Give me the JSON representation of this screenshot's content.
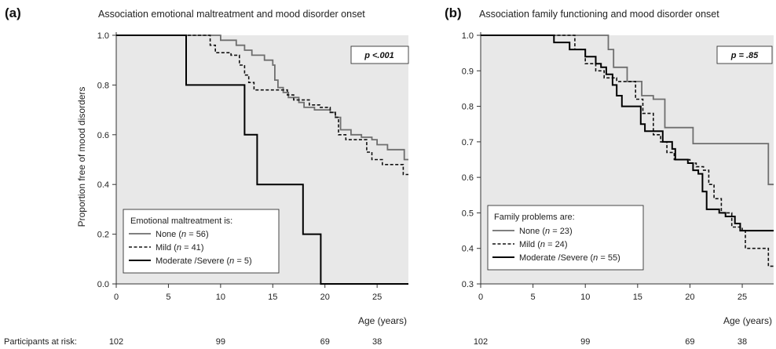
{
  "risk_row_label": "Participants at risk:",
  "legend_n_label": "n",
  "colors": {
    "plot_background": "#e8e8e8",
    "none": "#6e6e6e",
    "mild": "#111111",
    "moderate_severe": "#000000"
  },
  "chart_data": [
    {
      "type": "line",
      "step": true,
      "panel_letter": "(a)",
      "title": "Association emotional maltreatment and mood disorder onset",
      "xlabel": "Age (years)",
      "ylabel": "Proportion free of mood disorders",
      "xlim": [
        0,
        28
      ],
      "ylim": [
        0,
        1
      ],
      "xticks": [
        0,
        5,
        10,
        15,
        20,
        25
      ],
      "yticks": [
        "0.0",
        "0.2",
        "0.4",
        "0.6",
        "0.8",
        "1.0"
      ],
      "grid": false,
      "p_value": "p <.001",
      "legend": {
        "title": "Emotional maltreatment is:",
        "position": "bottom-left"
      },
      "series": [
        {
          "key": "none",
          "label": "None",
          "n_text": " = 56",
          "style": "solid",
          "color": "#6e6e6e",
          "width": 1.8,
          "points": [
            [
              0,
              1.0
            ],
            [
              9,
              1.0
            ],
            [
              10,
              0.98
            ],
            [
              11.5,
              0.96
            ],
            [
              12.3,
              0.94
            ],
            [
              13,
              0.92
            ],
            [
              14.2,
              0.9
            ],
            [
              15,
              0.88
            ],
            [
              15.2,
              0.82
            ],
            [
              15.5,
              0.79
            ],
            [
              16,
              0.77
            ],
            [
              16.5,
              0.75
            ],
            [
              17.5,
              0.73
            ],
            [
              18,
              0.71
            ],
            [
              19,
              0.7
            ],
            [
              20.5,
              0.69
            ],
            [
              21,
              0.67
            ],
            [
              21.5,
              0.62
            ],
            [
              22.5,
              0.6
            ],
            [
              23.5,
              0.59
            ],
            [
              24.5,
              0.58
            ],
            [
              25,
              0.56
            ],
            [
              26,
              0.54
            ],
            [
              27.6,
              0.5
            ],
            [
              28,
              0.5
            ]
          ]
        },
        {
          "key": "mild",
          "label": "Mild",
          "n_text": " = 41",
          "style": "dashed",
          "color": "#111111",
          "width": 1.6,
          "points": [
            [
              0,
              1.0
            ],
            [
              8.5,
              1.0
            ],
            [
              9,
              0.96
            ],
            [
              9.5,
              0.93
            ],
            [
              11,
              0.92
            ],
            [
              11.8,
              0.88
            ],
            [
              12.3,
              0.84
            ],
            [
              12.7,
              0.81
            ],
            [
              13.2,
              0.78
            ],
            [
              16,
              0.78
            ],
            [
              16.4,
              0.76
            ],
            [
              17,
              0.74
            ],
            [
              18.5,
              0.72
            ],
            [
              19.5,
              0.71
            ],
            [
              20.5,
              0.69
            ],
            [
              21,
              0.67
            ],
            [
              21.3,
              0.6
            ],
            [
              22,
              0.58
            ],
            [
              24,
              0.53
            ],
            [
              24.5,
              0.5
            ],
            [
              25.5,
              0.48
            ],
            [
              27.5,
              0.44
            ],
            [
              28,
              0.44
            ]
          ]
        },
        {
          "key": "moderate_severe",
          "label": "Moderate /Severe",
          "n_text": " = 5",
          "style": "solid",
          "color": "#000000",
          "width": 2.0,
          "points": [
            [
              0,
              1.0
            ],
            [
              6.7,
              1.0
            ],
            [
              6.7,
              0.8
            ],
            [
              12.3,
              0.8
            ],
            [
              12.3,
              0.6
            ],
            [
              13.5,
              0.6
            ],
            [
              13.5,
              0.4
            ],
            [
              17.9,
              0.4
            ],
            [
              17.9,
              0.2
            ],
            [
              19.6,
              0.2
            ],
            [
              19.6,
              0.0
            ],
            [
              28,
              0.0
            ]
          ]
        }
      ],
      "at_risk": [
        {
          "age": 0,
          "count": "102"
        },
        {
          "age": 10,
          "count": "99"
        },
        {
          "age": 20,
          "count": "69"
        },
        {
          "age": 25,
          "count": "38"
        }
      ]
    },
    {
      "type": "line",
      "step": true,
      "panel_letter": "(b)",
      "title": "Association family functioning and mood disorder onset",
      "xlabel": "Age (years)",
      "ylabel": "",
      "xlim": [
        0,
        28
      ],
      "ylim": [
        0.3,
        1
      ],
      "xticks": [
        0,
        5,
        10,
        15,
        20,
        25
      ],
      "yticks": [
        "0.3",
        "0.4",
        "0.5",
        "0.6",
        "0.7",
        "0.8",
        "0.9",
        "1.0"
      ],
      "grid": false,
      "p_value": "p = .85",
      "legend": {
        "title": "Family problems are:",
        "position": "bottom-left"
      },
      "series": [
        {
          "key": "none",
          "label": "None",
          "n_text": " = 23",
          "style": "solid",
          "color": "#6e6e6e",
          "width": 1.8,
          "points": [
            [
              0,
              1.0
            ],
            [
              12.2,
              1.0
            ],
            [
              12.2,
              0.96
            ],
            [
              12.7,
              0.91
            ],
            [
              14,
              0.91
            ],
            [
              14,
              0.87
            ],
            [
              15,
              0.87
            ],
            [
              15.4,
              0.83
            ],
            [
              16.5,
              0.83
            ],
            [
              16.5,
              0.82
            ],
            [
              17.3,
              0.82
            ],
            [
              17.6,
              0.74
            ],
            [
              20.3,
              0.74
            ],
            [
              20.3,
              0.695
            ],
            [
              27.5,
              0.695
            ],
            [
              27.5,
              0.58
            ],
            [
              28,
              0.58
            ]
          ]
        },
        {
          "key": "mild",
          "label": "Mild",
          "n_text": " = 24",
          "style": "dashed",
          "color": "#111111",
          "width": 1.6,
          "points": [
            [
              0,
              1.0
            ],
            [
              8.7,
              1.0
            ],
            [
              9,
              0.96
            ],
            [
              10,
              0.92
            ],
            [
              11,
              0.9
            ],
            [
              11.8,
              0.88
            ],
            [
              13,
              0.87
            ],
            [
              14.3,
              0.87
            ],
            [
              14.8,
              0.82
            ],
            [
              15.5,
              0.78
            ],
            [
              16.5,
              0.72
            ],
            [
              17.2,
              0.7
            ],
            [
              17.8,
              0.67
            ],
            [
              18.5,
              0.65
            ],
            [
              20,
              0.64
            ],
            [
              20.6,
              0.63
            ],
            [
              21.3,
              0.62
            ],
            [
              21.8,
              0.58
            ],
            [
              22.3,
              0.54
            ],
            [
              23,
              0.5
            ],
            [
              24,
              0.46
            ],
            [
              25,
              0.45
            ],
            [
              25.3,
              0.4
            ],
            [
              27.5,
              0.35
            ],
            [
              28,
              0.35
            ]
          ]
        },
        {
          "key": "moderate_severe",
          "label": "Moderate /Severe",
          "n_text": " = 55",
          "style": "solid",
          "color": "#000000",
          "width": 2.0,
          "points": [
            [
              0,
              1.0
            ],
            [
              7,
              1.0
            ],
            [
              7,
              0.98
            ],
            [
              8.5,
              0.98
            ],
            [
              8.5,
              0.96
            ],
            [
              10,
              0.94
            ],
            [
              11,
              0.92
            ],
            [
              11.5,
              0.91
            ],
            [
              12,
              0.89
            ],
            [
              12.6,
              0.86
            ],
            [
              13,
              0.83
            ],
            [
              13.5,
              0.8
            ],
            [
              15,
              0.8
            ],
            [
              15.3,
              0.75
            ],
            [
              15.7,
              0.73
            ],
            [
              16.8,
              0.73
            ],
            [
              17.4,
              0.7
            ],
            [
              18.3,
              0.68
            ],
            [
              18.6,
              0.65
            ],
            [
              19.2,
              0.65
            ],
            [
              19.8,
              0.64
            ],
            [
              20.3,
              0.62
            ],
            [
              20.8,
              0.61
            ],
            [
              21.2,
              0.56
            ],
            [
              21.6,
              0.51
            ],
            [
              22.3,
              0.51
            ],
            [
              22.8,
              0.5
            ],
            [
              23.4,
              0.49
            ],
            [
              24.3,
              0.47
            ],
            [
              24.8,
              0.45
            ],
            [
              28,
              0.45
            ]
          ]
        }
      ],
      "at_risk": [
        {
          "age": 0,
          "count": "102"
        },
        {
          "age": 10,
          "count": "99"
        },
        {
          "age": 20,
          "count": "69"
        },
        {
          "age": 25,
          "count": "38"
        }
      ]
    }
  ]
}
